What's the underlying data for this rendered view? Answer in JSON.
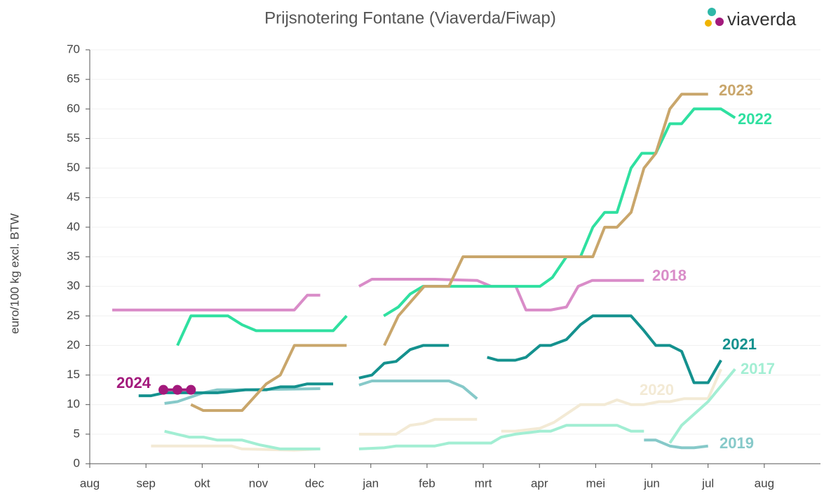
{
  "logo": "viaverda",
  "chart_data": {
    "type": "line",
    "title": "Prijsnotering Fontane (Viaverda/Fiwap)",
    "y_label": "euro/100 kg excl. BTW",
    "xlim": [
      0,
      13
    ],
    "xticks": [
      {
        "value": 0,
        "label": "aug"
      },
      {
        "value": 1,
        "label": "sep"
      },
      {
        "value": 2,
        "label": "okt"
      },
      {
        "value": 3,
        "label": "nov"
      },
      {
        "value": 4,
        "label": "dec"
      },
      {
        "value": 5,
        "label": "jan"
      },
      {
        "value": 6,
        "label": "feb"
      },
      {
        "value": 7,
        "label": "mrt"
      },
      {
        "value": 8,
        "label": "apr"
      },
      {
        "value": 9,
        "label": "mei"
      },
      {
        "value": 10,
        "label": "jun"
      },
      {
        "value": 11,
        "label": "jul"
      },
      {
        "value": 12,
        "label": "aug"
      }
    ],
    "ylim": [
      0,
      70
    ],
    "yticks": [
      0,
      5,
      10,
      15,
      20,
      25,
      30,
      35,
      40,
      45,
      50,
      55,
      60,
      65,
      70
    ],
    "grid": true,
    "series": [
      {
        "name": "2018",
        "color": "#d98cc8",
        "x": [
          0.4,
          3.64,
          3.87,
          4.1,
          null,
          4.79,
          5.02,
          6.14,
          6.89,
          7.14,
          7.58,
          7.76,
          8.2,
          8.48,
          8.69,
          8.94,
          9.86
        ],
        "values": [
          26,
          26,
          28.5,
          28.5,
          null,
          30,
          31.2,
          31.2,
          31,
          30,
          30,
          26,
          26,
          26.5,
          30,
          31,
          31
        ]
      },
      {
        "name": "2020",
        "color": "#f3ead5",
        "x": [
          1.09,
          2.52,
          2.71,
          3.64,
          4.1,
          null,
          4.79,
          5.45,
          5.7,
          5.93,
          6.14,
          6.89,
          null,
          7.32,
          7.57,
          8.01,
          8.26,
          8.73,
          9.16,
          9.38,
          9.63,
          9.86,
          10.13,
          10.32,
          10.57,
          11.0,
          11.23
        ],
        "values": [
          3,
          3,
          2.5,
          2.3,
          2.5,
          null,
          5,
          5,
          6.5,
          6.8,
          7.5,
          7.5,
          null,
          5.5,
          5.5,
          6,
          7,
          10,
          10,
          10.8,
          10,
          10,
          10.5,
          10.5,
          11,
          11,
          16
        ]
      },
      {
        "name": "2017",
        "color": "#a2eed3",
        "x": [
          1.33,
          1.77,
          2.02,
          2.27,
          2.71,
          3.02,
          3.39,
          4.1,
          null,
          4.79,
          5.24,
          5.45,
          6.14,
          6.39,
          7.14,
          7.32,
          7.57,
          8.01,
          8.2,
          8.48,
          9.38,
          9.63,
          9.86,
          null,
          10.32,
          10.53,
          11.0,
          11.48
        ],
        "values": [
          5.5,
          4.5,
          4.5,
          4,
          4,
          3.2,
          2.5,
          2.5,
          null,
          2.5,
          2.7,
          3,
          3,
          3.5,
          3.5,
          4.5,
          5,
          5.5,
          5.5,
          6.5,
          6.5,
          5.5,
          5.5,
          null,
          3.5,
          6.5,
          10.5,
          16
        ]
      },
      {
        "name": "2019",
        "color": "#86c9c9",
        "x": [
          1.33,
          1.56,
          2.02,
          2.27,
          2.71,
          4.1,
          null,
          4.79,
          5.02,
          6.39,
          6.64,
          6.89,
          null,
          9.86,
          10.07,
          10.32,
          10.53,
          10.75,
          11.0
        ],
        "values": [
          10.2,
          10.5,
          12,
          12.5,
          12.5,
          12.7,
          null,
          13.3,
          14,
          14,
          13,
          11,
          null,
          4,
          4,
          3,
          2.7,
          2.7,
          3
        ]
      },
      {
        "name": "2021",
        "color": "#14918e",
        "x": [
          0.87,
          1.09,
          1.33,
          2.27,
          2.77,
          3.14,
          3.39,
          3.64,
          3.87,
          4.33,
          null,
          4.79,
          5.02,
          5.24,
          5.45,
          5.7,
          5.93,
          6.39,
          null,
          7.07,
          7.26,
          7.57,
          7.76,
          8.01,
          8.2,
          8.48,
          8.73,
          8.95,
          9.63,
          9.86,
          10.07,
          10.32,
          10.53,
          10.75,
          11.0,
          11.23
        ],
        "values": [
          11.5,
          11.5,
          12,
          12,
          12.5,
          12.5,
          13,
          13,
          13.5,
          13.5,
          null,
          14.5,
          15,
          17,
          17.3,
          19.3,
          20,
          20,
          null,
          18,
          17.5,
          17.5,
          18,
          20,
          20,
          21,
          23.5,
          25,
          25,
          22.5,
          20,
          20,
          19,
          13.7,
          13.7,
          17.5
        ]
      },
      {
        "name": "2022",
        "color": "#2fe0a0",
        "x": [
          1.56,
          1.8,
          2.46,
          2.71,
          2.96,
          4.33,
          4.57,
          null,
          5.23,
          5.49,
          5.7,
          5.93,
          8.01,
          8.23,
          8.48,
          8.73,
          8.95,
          9.16,
          9.38,
          9.63,
          9.82,
          10.07,
          10.32,
          10.53,
          10.75,
          11.23,
          11.48
        ],
        "values": [
          20,
          25,
          25,
          23.5,
          22.5,
          22.5,
          25,
          null,
          25,
          26.5,
          28.7,
          30,
          30,
          31.5,
          35,
          35,
          40,
          42.5,
          42.5,
          50,
          52.5,
          52.5,
          57.5,
          57.5,
          60,
          60,
          58.5
        ]
      },
      {
        "name": "2023",
        "color": "#c9a66b",
        "x": [
          1.8,
          2.02,
          2.71,
          3.14,
          3.39,
          3.64,
          4.57,
          null,
          5.24,
          5.49,
          5.95,
          6.39,
          6.64,
          8.95,
          9.16,
          9.38,
          9.63,
          9.86,
          10.07,
          10.32,
          10.53,
          11.0
        ],
        "values": [
          10,
          9,
          9,
          13.5,
          15,
          20,
          20,
          null,
          20,
          25,
          30,
          30,
          35,
          35,
          40,
          40,
          42.5,
          50,
          52.5,
          60,
          62.5,
          62.5
        ]
      },
      {
        "name": "2024",
        "color": "#a3197c",
        "markers": true,
        "x": [
          1.31,
          1.56,
          1.8
        ],
        "values": [
          12.5,
          12.5,
          12.5
        ]
      }
    ]
  }
}
